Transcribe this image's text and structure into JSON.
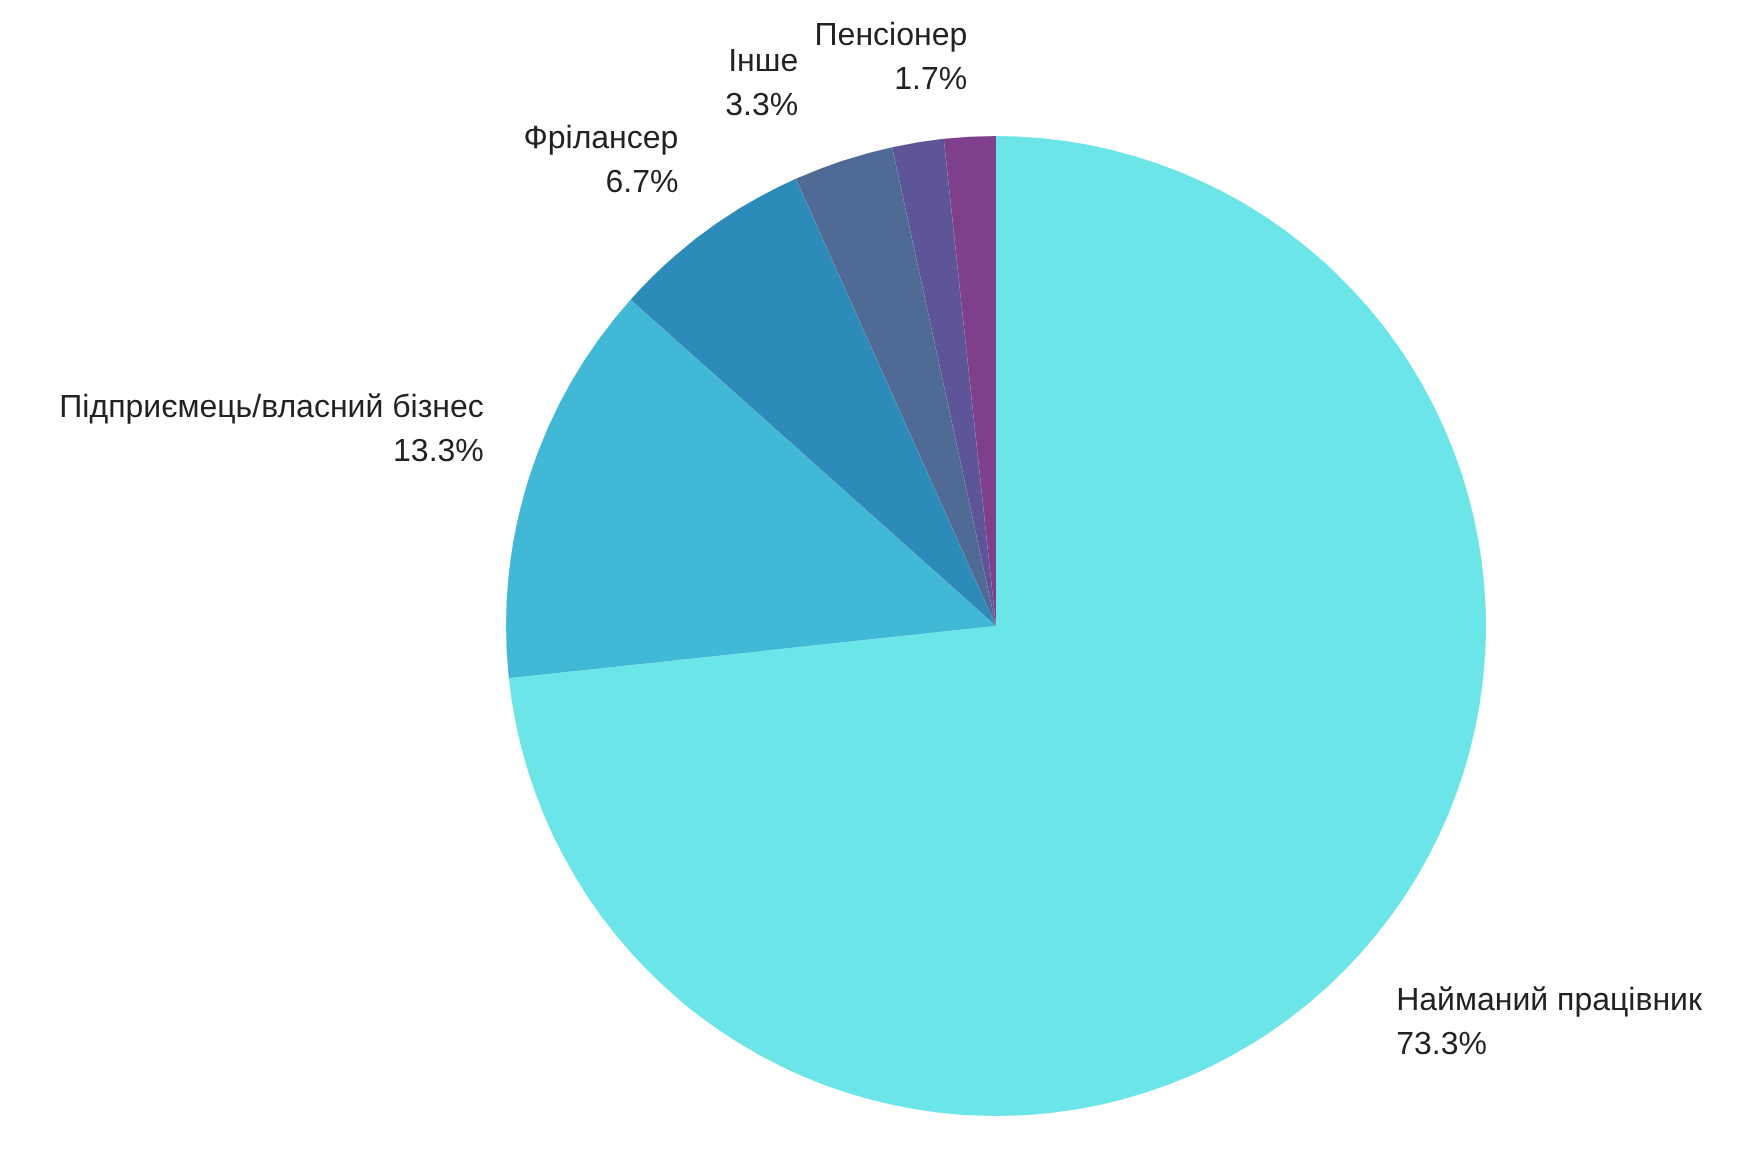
{
  "chart_data": {
    "type": "pie",
    "categories": [
      "Найманий працівник",
      "Підприємець/власний бізнес",
      "Фрілансер",
      "Інше",
      null,
      "Пенсіонер"
    ],
    "values": [
      73.3,
      13.3,
      6.7,
      3.3,
      1.7,
      1.7
    ],
    "value_labels": [
      "73.3%",
      "13.3%",
      "6.7%",
      "3.3%",
      null,
      "1.7%"
    ],
    "colors": [
      "#6ce5e8",
      "#41b8d5",
      "#2d8bba",
      "#4f6a95",
      "#5d5597",
      "#7e3f8c"
    ]
  }
}
